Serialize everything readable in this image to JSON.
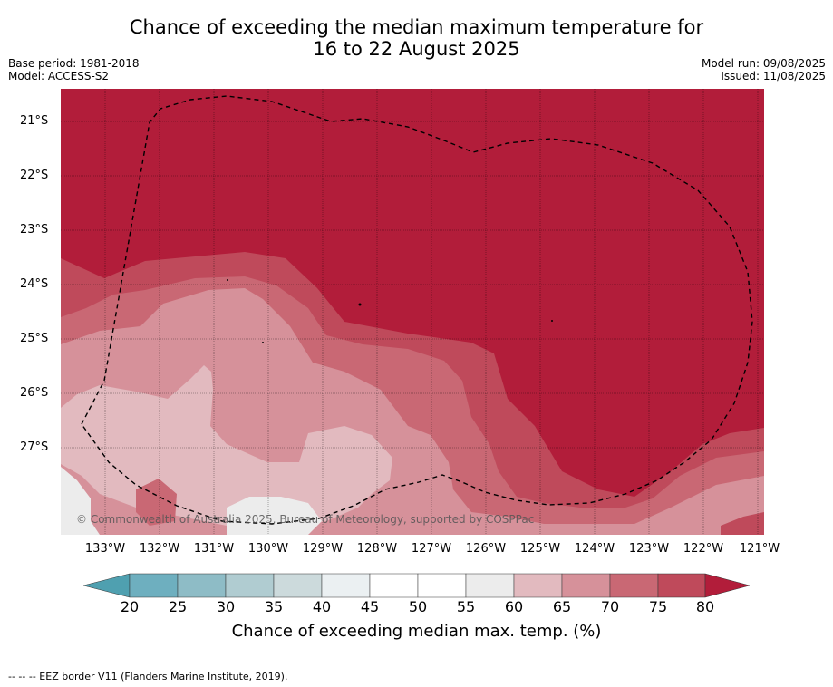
{
  "title_line1": "Chance of exceeding the median maximum temperature for",
  "title_line2": "16 to 22 August 2025",
  "base_period": "Base period: 1981-2018",
  "model": "Model: ACCESS-S2",
  "model_run": "Model run: 09/08/2025",
  "issued": "Issued: 11/08/2025",
  "copyright": "© Commonwealth of Australia 2025, Bureau of Meteorology, supported by COSPPac",
  "y_ticks": [
    "21°S",
    "22°S",
    "23°S",
    "24°S",
    "25°S",
    "26°S",
    "27°S"
  ],
  "x_ticks": [
    "133°W",
    "132°W",
    "131°W",
    "130°W",
    "129°W",
    "128°W",
    "127°W",
    "126°W",
    "125°W",
    "124°W",
    "123°W",
    "122°W",
    "121°W"
  ],
  "colorbar": {
    "ticks": [
      "20",
      "25",
      "30",
      "35",
      "40",
      "45",
      "50",
      "55",
      "60",
      "65",
      "70",
      "75",
      "80"
    ],
    "colors": [
      "#4fa0b0",
      "#6eafbf",
      "#8ebcc6",
      "#b0ccd1",
      "#ccdadc",
      "#ebf0f2",
      "#ffffff",
      "#ffffff",
      "#ececec",
      "#e2babf",
      "#d6919a",
      "#c96874",
      "#bf4a5b",
      "#b21d3a"
    ],
    "label": "Chance of exceeding median max. temp. (%)"
  },
  "footer": "--  --  -- EEZ border V11 (Flanders Marine Institute, 2019)."
}
